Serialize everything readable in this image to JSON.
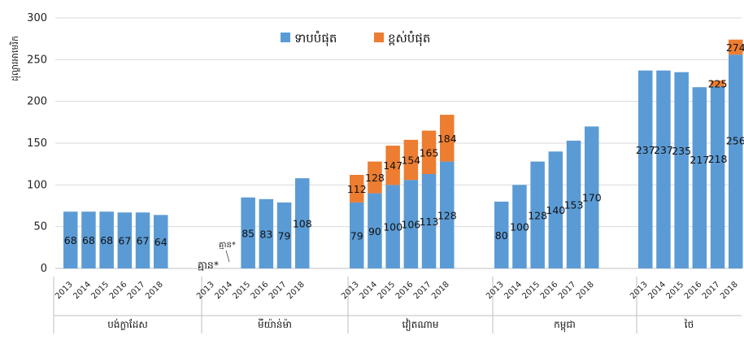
{
  "chart_data": {
    "type": "bar",
    "ylabel": "ដុល្លារអាមេរិក",
    "ylim": [
      0,
      300
    ],
    "yticks": [
      0,
      50,
      100,
      150,
      200,
      250,
      300
    ],
    "grid": true,
    "legend_position": "top-center",
    "colors": {
      "low": "#5b9bd5",
      "high": "#ed7d31"
    },
    "years": [
      "2013",
      "2014",
      "2015",
      "2016",
      "2017",
      "2018"
    ],
    "series": [
      {
        "name": "ទាបបំផុត",
        "key": "low"
      },
      {
        "name": "ខ្ពស់បំផុត",
        "key": "high"
      }
    ],
    "groups": [
      {
        "name": "បង់ក្លាដែស",
        "low": [
          68,
          68,
          68,
          67,
          67,
          64
        ],
        "high": [
          null,
          null,
          null,
          null,
          null,
          null
        ]
      },
      {
        "name": "មីយ៉ាន់ម៉ា",
        "low": [
          null,
          null,
          85,
          83,
          79,
          108
        ],
        "high": [
          null,
          null,
          null,
          null,
          null,
          null
        ],
        "notes": [
          "គ្មាន*",
          "គ្មាន*"
        ]
      },
      {
        "name": "វៀតណាម",
        "low": [
          79,
          90,
          100,
          106,
          113,
          128
        ],
        "high": [
          112,
          128,
          147,
          154,
          165,
          184
        ]
      },
      {
        "name": "កម្ពុជា",
        "low": [
          80,
          100,
          128,
          140,
          153,
          170
        ],
        "high": [
          null,
          null,
          null,
          null,
          null,
          null
        ]
      },
      {
        "name": "ថៃ",
        "low": [
          237,
          237,
          235,
          217,
          218,
          256
        ],
        "high": [
          null,
          null,
          null,
          null,
          225,
          274
        ]
      }
    ]
  }
}
